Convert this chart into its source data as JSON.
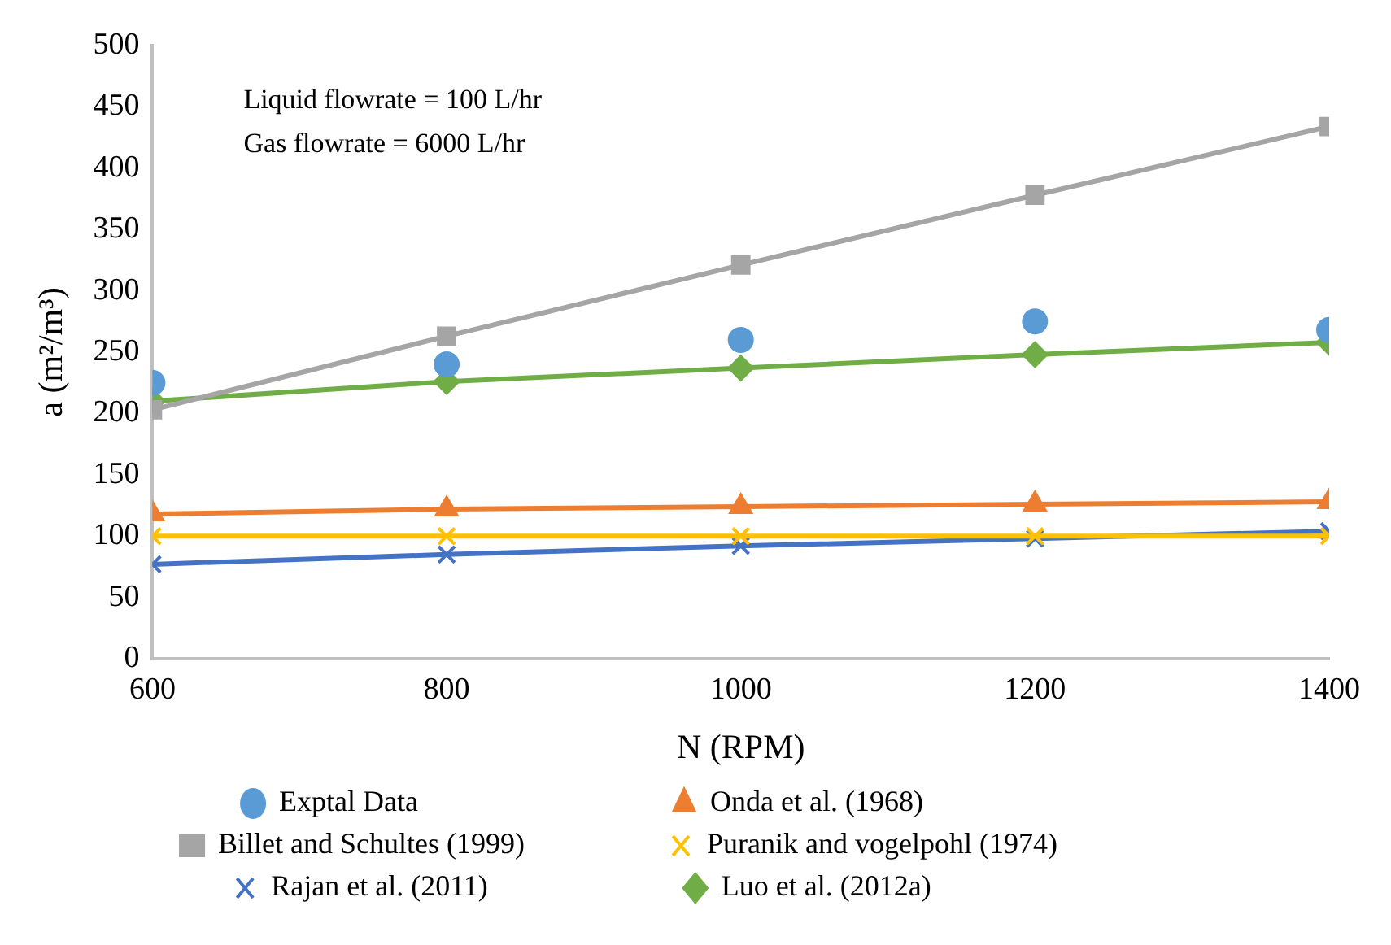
{
  "chart_data": {
    "type": "line",
    "xlabel": "N (RPM)",
    "ylabel": "a (m²/m³)",
    "x": [
      600,
      800,
      1000,
      1200,
      1400
    ],
    "xlim": [
      600,
      1400
    ],
    "xticks": [
      600,
      800,
      1000,
      1200,
      1400
    ],
    "ylim": [
      0,
      500
    ],
    "yticks": [
      0,
      50,
      100,
      150,
      200,
      250,
      300,
      350,
      400,
      450,
      500
    ],
    "grid": false,
    "legend": "bottom",
    "annotations": [
      "Liquid flowrate = 100 L/hr",
      "Gas flowrate = 6000 L/hr"
    ],
    "series": [
      {
        "name": "Exptal Data",
        "type": "scatter",
        "marker": "circle",
        "color": "#5b9bd5",
        "values": [
          225,
          240,
          260,
          275,
          268
        ]
      },
      {
        "name": "Onda et al. (1968)",
        "marker": "triangle",
        "color": "#ed7d31",
        "values": [
          118,
          122,
          124,
          126,
          128
        ]
      },
      {
        "name": "Billet and Schultes (1999)",
        "marker": "square",
        "color": "#a5a5a5",
        "values": [
          203,
          263,
          321,
          378,
          434
        ]
      },
      {
        "name": "Puranik and vogelpohl (1974)",
        "marker": "cross",
        "color": "#ffc000",
        "values": [
          100,
          100,
          100,
          100,
          100
        ]
      },
      {
        "name": "Rajan et al. (2011)",
        "marker": "cross",
        "color": "#4472c4",
        "values": [
          77,
          85,
          92,
          98,
          104
        ]
      },
      {
        "name": "Luo et al. (2012a)",
        "marker": "diamond",
        "color": "#70ad47",
        "values": [
          210,
          226,
          237,
          248,
          258
        ]
      }
    ]
  }
}
